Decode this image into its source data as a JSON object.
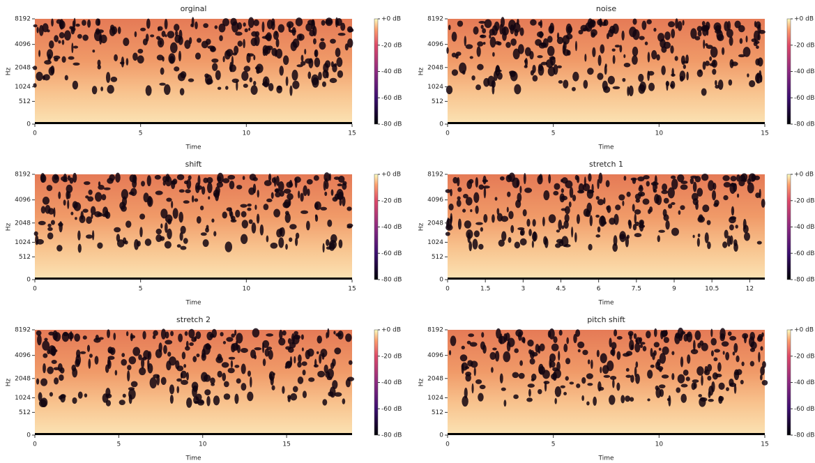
{
  "chart_data": [
    {
      "type": "spectrogram",
      "title": "orginal",
      "xlabel": "Time",
      "ylabel": "Hz",
      "yscale": "mel",
      "xlim": [
        0,
        15
      ],
      "xticks": [
        0,
        5,
        10,
        15
      ],
      "ylim": [
        0,
        8192
      ],
      "yticks": [
        0,
        512,
        1024,
        2048,
        4096,
        8192
      ],
      "colormap": "magma",
      "clim": [
        -80,
        0
      ],
      "colorbar_ticks": [
        {
          "value": 0,
          "label": "+0 dB"
        },
        {
          "value": -20,
          "label": "-20 dB"
        },
        {
          "value": -40,
          "label": "-40 dB"
        },
        {
          "value": -60,
          "label": "-60 dB"
        },
        {
          "value": -80,
          "label": "-80 dB"
        }
      ]
    },
    {
      "type": "spectrogram",
      "title": "noise",
      "xlabel": "Time",
      "ylabel": "Hz",
      "yscale": "mel",
      "xlim": [
        0,
        15
      ],
      "xticks": [
        0,
        5,
        10,
        15
      ],
      "ylim": [
        0,
        8192
      ],
      "yticks": [
        0,
        512,
        1024,
        2048,
        4096,
        8192
      ],
      "colormap": "magma",
      "clim": [
        -80,
        0
      ],
      "colorbar_ticks": [
        {
          "value": 0,
          "label": "+0 dB"
        },
        {
          "value": -20,
          "label": "-20 dB"
        },
        {
          "value": -40,
          "label": "-40 dB"
        },
        {
          "value": -60,
          "label": "-60 dB"
        },
        {
          "value": -80,
          "label": "-80 dB"
        }
      ]
    },
    {
      "type": "spectrogram",
      "title": "shift",
      "xlabel": "Time",
      "ylabel": "Hz",
      "yscale": "mel",
      "xlim": [
        0,
        15
      ],
      "xticks": [
        0,
        5,
        10,
        15
      ],
      "ylim": [
        0,
        8192
      ],
      "yticks": [
        0,
        512,
        1024,
        2048,
        4096,
        8192
      ],
      "colormap": "magma",
      "clim": [
        -80,
        0
      ],
      "colorbar_ticks": [
        {
          "value": 0,
          "label": "+0 dB"
        },
        {
          "value": -20,
          "label": "-20 dB"
        },
        {
          "value": -40,
          "label": "-40 dB"
        },
        {
          "value": -60,
          "label": "-60 dB"
        },
        {
          "value": -80,
          "label": "-80 dB"
        }
      ]
    },
    {
      "type": "spectrogram",
      "title": "stretch 1",
      "xlabel": "Time",
      "ylabel": "Hz",
      "yscale": "mel",
      "xlim": [
        0,
        12.6
      ],
      "xticks": [
        0,
        1.5,
        3,
        4.5,
        6,
        7.5,
        9,
        10.5,
        12
      ],
      "ylim": [
        0,
        8192
      ],
      "yticks": [
        0,
        512,
        1024,
        2048,
        4096,
        8192
      ],
      "colormap": "magma",
      "clim": [
        -80,
        0
      ],
      "colorbar_ticks": [
        {
          "value": 0,
          "label": "+0 dB"
        },
        {
          "value": -20,
          "label": "-20 dB"
        },
        {
          "value": -40,
          "label": "-40 dB"
        },
        {
          "value": -60,
          "label": "-60 dB"
        },
        {
          "value": -80,
          "label": "-80 dB"
        }
      ]
    },
    {
      "type": "spectrogram",
      "title": "stretch 2",
      "xlabel": "Time",
      "ylabel": "Hz",
      "yscale": "mel",
      "xlim": [
        0,
        18.9
      ],
      "xticks": [
        0,
        5,
        10,
        15
      ],
      "ylim": [
        0,
        8192
      ],
      "yticks": [
        0,
        512,
        1024,
        2048,
        4096,
        8192
      ],
      "colormap": "magma",
      "clim": [
        -80,
        0
      ],
      "colorbar_ticks": [
        {
          "value": 0,
          "label": "+0 dB"
        },
        {
          "value": -20,
          "label": "-20 dB"
        },
        {
          "value": -40,
          "label": "-40 dB"
        },
        {
          "value": -60,
          "label": "-60 dB"
        },
        {
          "value": -80,
          "label": "-80 dB"
        }
      ]
    },
    {
      "type": "spectrogram",
      "title": "pitch shift",
      "xlabel": "Time",
      "ylabel": "Hz",
      "yscale": "mel",
      "xlim": [
        0,
        15
      ],
      "xticks": [
        0,
        5,
        10,
        15
      ],
      "ylim": [
        0,
        8192
      ],
      "yticks": [
        0,
        512,
        1024,
        2048,
        4096,
        8192
      ],
      "colormap": "magma",
      "clim": [
        -80,
        0
      ],
      "colorbar_ticks": [
        {
          "value": 0,
          "label": "+0 dB"
        },
        {
          "value": -20,
          "label": "-20 dB"
        },
        {
          "value": -40,
          "label": "-40 dB"
        },
        {
          "value": -60,
          "label": "-60 dB"
        },
        {
          "value": -80,
          "label": "-80 dB"
        }
      ]
    }
  ]
}
